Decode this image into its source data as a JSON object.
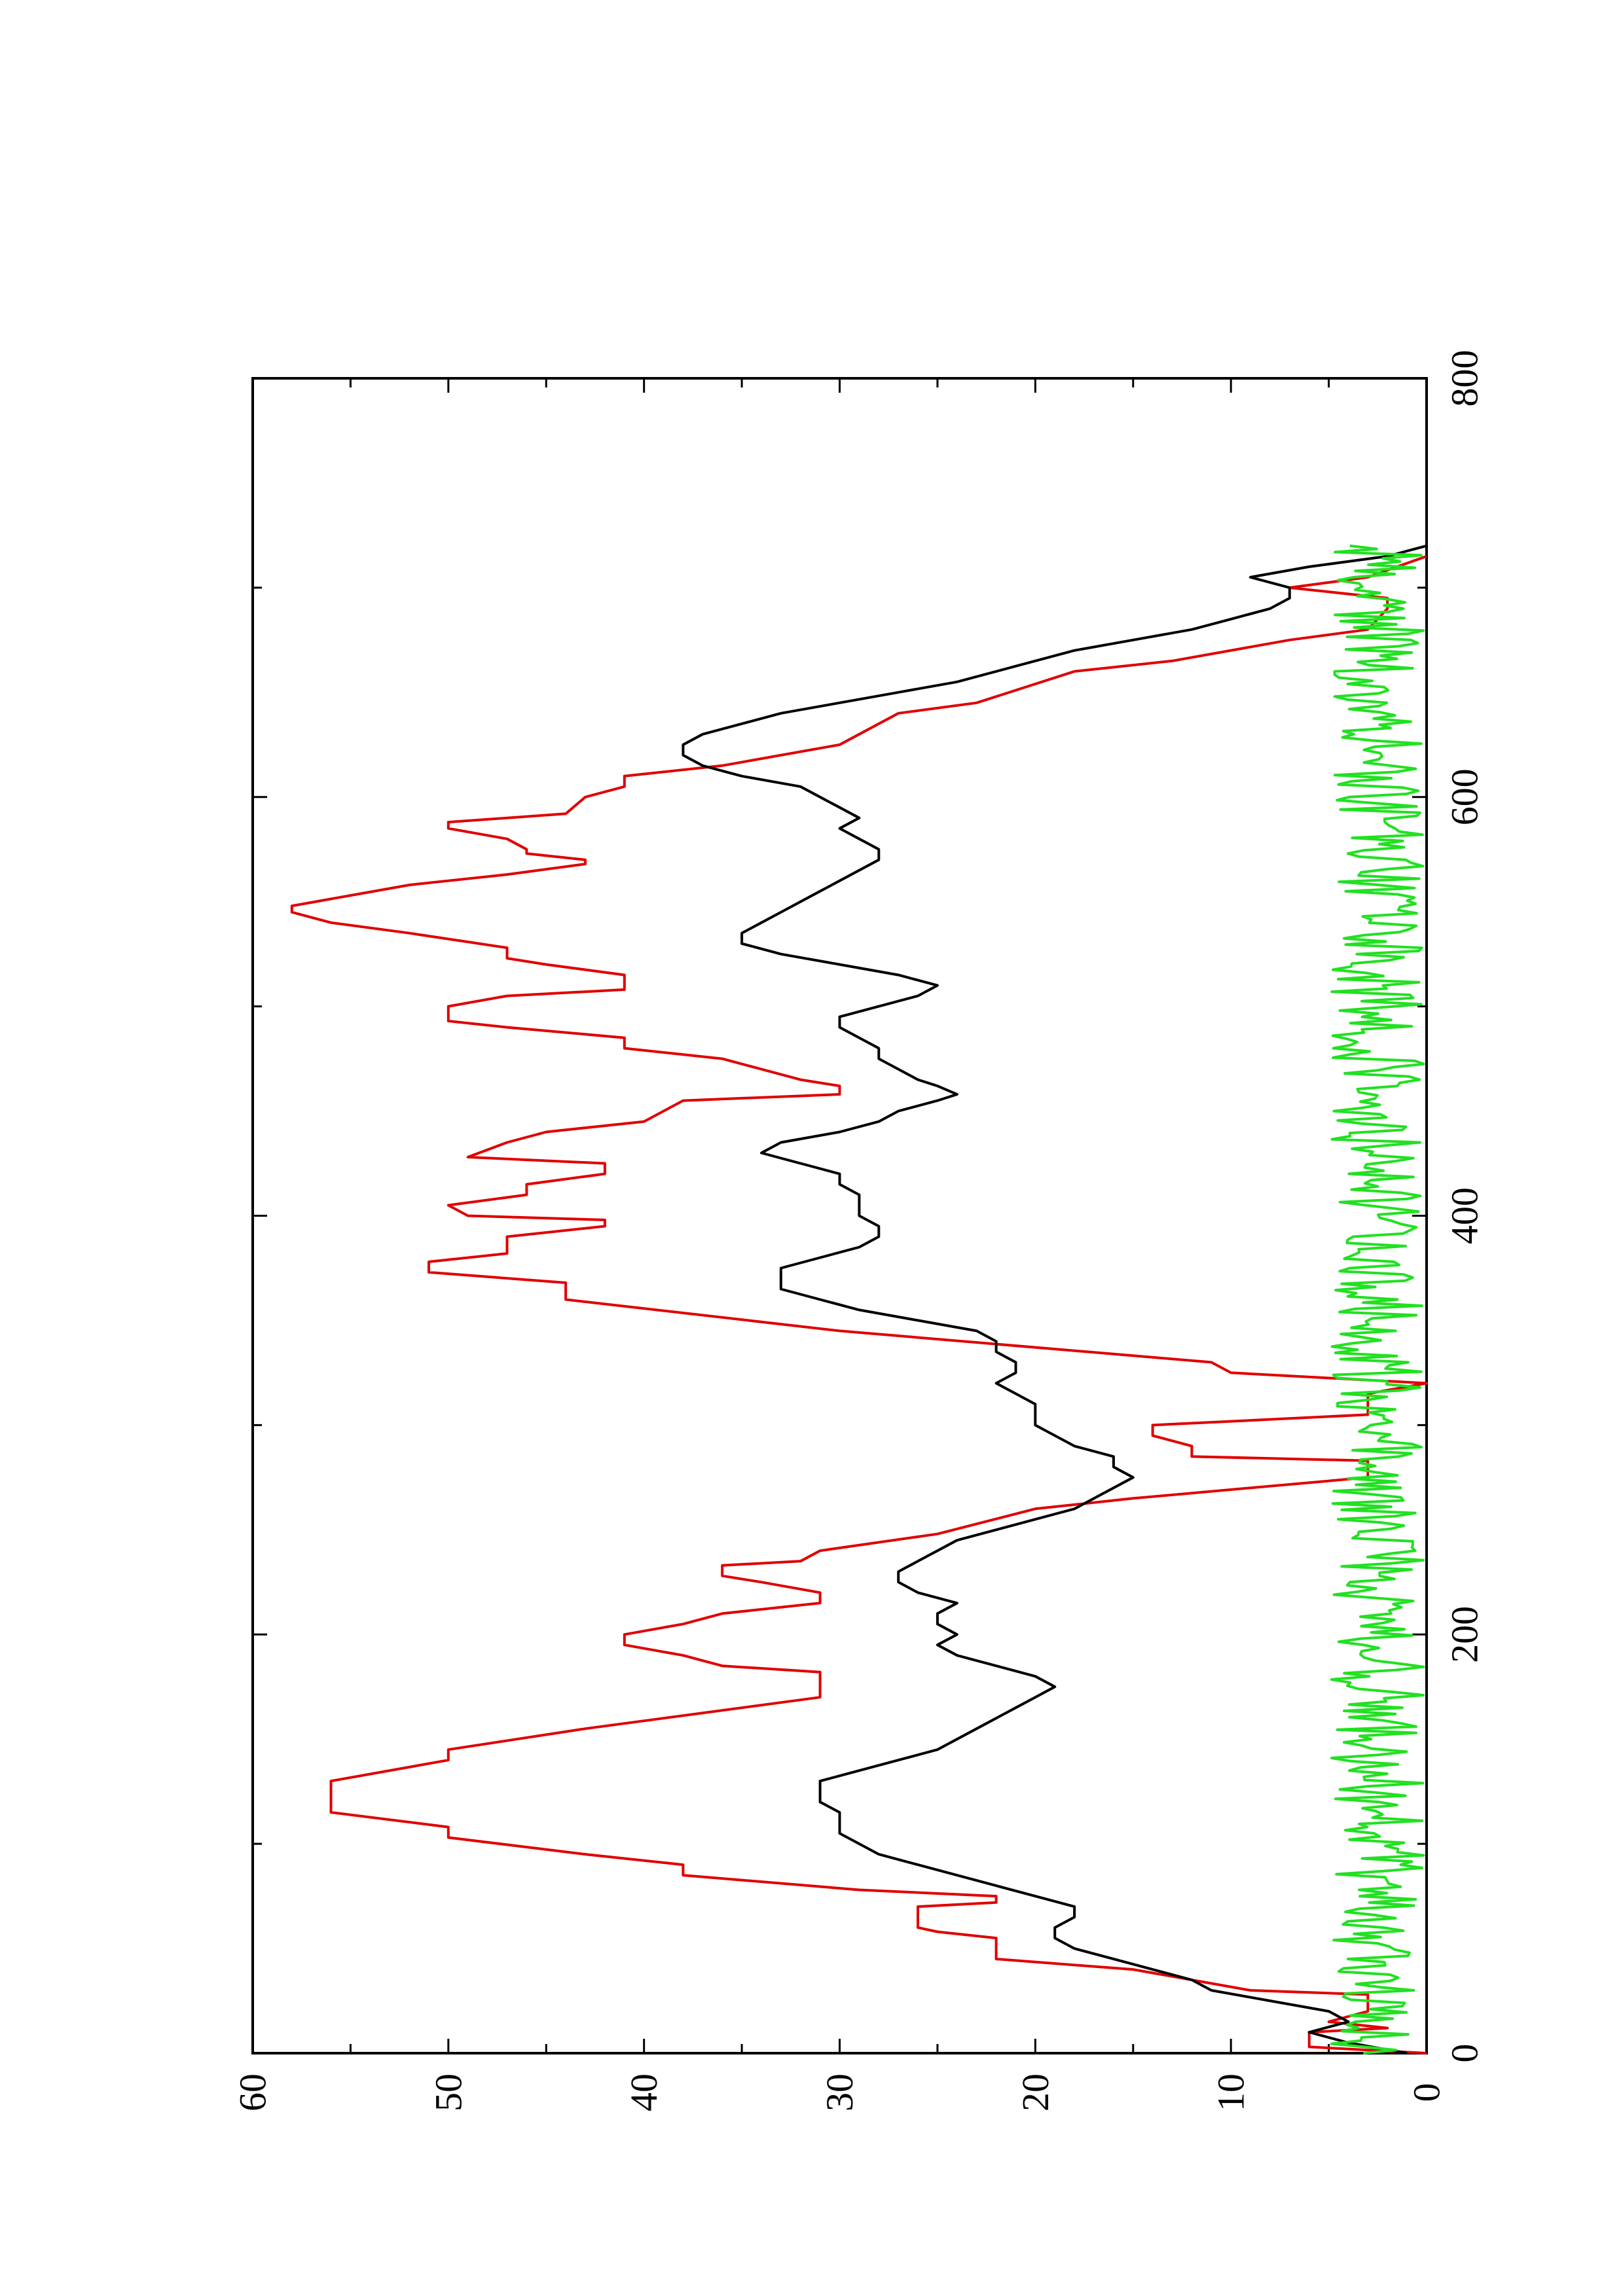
{
  "chart_data": {
    "type": "line",
    "orientation": "rotated-90-ccw",
    "title": "",
    "xlabel": "",
    "ylabel": "",
    "xlim": [
      0,
      800
    ],
    "ylim": [
      0,
      60
    ],
    "x_ticks": [
      0,
      200,
      400,
      600,
      800
    ],
    "y_ticks": [
      0,
      10,
      20,
      30,
      40,
      50,
      60
    ],
    "x_tick_labels": [
      "0",
      "200",
      "400",
      "600",
      "800"
    ],
    "y_tick_labels": [
      "0",
      "10",
      "20",
      "30",
      "40",
      "50",
      "60"
    ],
    "grid": false,
    "legend": "none",
    "series": [
      {
        "color": "#e00000",
        "style": "step",
        "points": [
          [
            0,
            0
          ],
          [
            3,
            6
          ],
          [
            10,
            6
          ],
          [
            12,
            2
          ],
          [
            15,
            5
          ],
          [
            20,
            3
          ],
          [
            28,
            3
          ],
          [
            30,
            9
          ],
          [
            40,
            15
          ],
          [
            45,
            22
          ],
          [
            55,
            22
          ],
          [
            58,
            25
          ],
          [
            60,
            26
          ],
          [
            70,
            26
          ],
          [
            72,
            22
          ],
          [
            75,
            22
          ],
          [
            78,
            29
          ],
          [
            85,
            38
          ],
          [
            90,
            38
          ],
          [
            95,
            43
          ],
          [
            103,
            50
          ],
          [
            108,
            50
          ],
          [
            115,
            56
          ],
          [
            130,
            56
          ],
          [
            140,
            50
          ],
          [
            145,
            50
          ],
          [
            155,
            43
          ],
          [
            170,
            31
          ],
          [
            182,
            31
          ],
          [
            185,
            36
          ],
          [
            190,
            38
          ],
          [
            195,
            41
          ],
          [
            200,
            41
          ],
          [
            205,
            38
          ],
          [
            210,
            36
          ],
          [
            215,
            31
          ],
          [
            220,
            31
          ],
          [
            225,
            34
          ],
          [
            228,
            36
          ],
          [
            233,
            36
          ],
          [
            235,
            32
          ],
          [
            240,
            31
          ],
          [
            248,
            25
          ],
          [
            260,
            20
          ],
          [
            265,
            15
          ],
          [
            275,
            3
          ],
          [
            283,
            3
          ],
          [
            285,
            12
          ],
          [
            290,
            12
          ],
          [
            295,
            14
          ],
          [
            300,
            14
          ],
          [
            305,
            3
          ],
          [
            315,
            3
          ],
          [
            320,
            0
          ],
          [
            325,
            10
          ],
          [
            330,
            11
          ],
          [
            345,
            30
          ],
          [
            360,
            44
          ],
          [
            368,
            44
          ],
          [
            373,
            51
          ],
          [
            378,
            51
          ],
          [
            382,
            47
          ],
          [
            390,
            47
          ],
          [
            395,
            42
          ],
          [
            398,
            42
          ],
          [
            400,
            49
          ],
          [
            405,
            50
          ],
          [
            410,
            46
          ],
          [
            415,
            46
          ],
          [
            420,
            42
          ],
          [
            425,
            42
          ],
          [
            428,
            49
          ],
          [
            435,
            47
          ],
          [
            440,
            45
          ],
          [
            445,
            40
          ],
          [
            450,
            39
          ],
          [
            455,
            38
          ],
          [
            458,
            30
          ],
          [
            462,
            30
          ],
          [
            465,
            32
          ],
          [
            470,
            34
          ],
          [
            475,
            36
          ],
          [
            480,
            41
          ],
          [
            485,
            41
          ],
          [
            490,
            47
          ],
          [
            493,
            50
          ],
          [
            500,
            50
          ],
          [
            505,
            47
          ],
          [
            508,
            41
          ],
          [
            515,
            41
          ],
          [
            520,
            45
          ],
          [
            523,
            47
          ],
          [
            528,
            47
          ],
          [
            535,
            52
          ],
          [
            540,
            56
          ],
          [
            545,
            58
          ],
          [
            548,
            58
          ],
          [
            553,
            55
          ],
          [
            558,
            52
          ],
          [
            563,
            47
          ],
          [
            568,
            43
          ],
          [
            570,
            43
          ],
          [
            573,
            46
          ],
          [
            575,
            46
          ],
          [
            580,
            47
          ],
          [
            585,
            50
          ],
          [
            588,
            50
          ],
          [
            592,
            44
          ],
          [
            600,
            43
          ],
          [
            605,
            41
          ],
          [
            610,
            41
          ],
          [
            615,
            36
          ],
          [
            625,
            30
          ],
          [
            640,
            27
          ],
          [
            645,
            23
          ],
          [
            660,
            18
          ],
          [
            665,
            13
          ],
          [
            675,
            7
          ],
          [
            680,
            3
          ],
          [
            690,
            2
          ],
          [
            695,
            2
          ],
          [
            700,
            7
          ],
          [
            705,
            3
          ],
          [
            715,
            0
          ]
        ]
      },
      {
        "color": "#000000",
        "style": "line",
        "points": [
          [
            0,
            1
          ],
          [
            5,
            4
          ],
          [
            10,
            6
          ],
          [
            15,
            4
          ],
          [
            20,
            5
          ],
          [
            25,
            8
          ],
          [
            30,
            11
          ],
          [
            35,
            12
          ],
          [
            40,
            14
          ],
          [
            45,
            16
          ],
          [
            50,
            18
          ],
          [
            55,
            19
          ],
          [
            60,
            19
          ],
          [
            65,
            18
          ],
          [
            70,
            18
          ],
          [
            75,
            20
          ],
          [
            80,
            22
          ],
          [
            85,
            24
          ],
          [
            90,
            26
          ],
          [
            95,
            28
          ],
          [
            100,
            29
          ],
          [
            105,
            30
          ],
          [
            110,
            30
          ],
          [
            115,
            30
          ],
          [
            120,
            31
          ],
          [
            125,
            31
          ],
          [
            130,
            31
          ],
          [
            135,
            29
          ],
          [
            140,
            27
          ],
          [
            145,
            25
          ],
          [
            150,
            24
          ],
          [
            155,
            23
          ],
          [
            160,
            22
          ],
          [
            165,
            21
          ],
          [
            170,
            20
          ],
          [
            175,
            19
          ],
          [
            180,
            20
          ],
          [
            185,
            22
          ],
          [
            190,
            24
          ],
          [
            195,
            25
          ],
          [
            200,
            24
          ],
          [
            205,
            25
          ],
          [
            210,
            25
          ],
          [
            215,
            24
          ],
          [
            220,
            26
          ],
          [
            225,
            27
          ],
          [
            230,
            27
          ],
          [
            235,
            26
          ],
          [
            240,
            25
          ],
          [
            245,
            24
          ],
          [
            250,
            22
          ],
          [
            255,
            20
          ],
          [
            260,
            18
          ],
          [
            265,
            17
          ],
          [
            270,
            16
          ],
          [
            275,
            15
          ],
          [
            280,
            16
          ],
          [
            285,
            16
          ],
          [
            290,
            18
          ],
          [
            295,
            19
          ],
          [
            300,
            20
          ],
          [
            305,
            20
          ],
          [
            310,
            20
          ],
          [
            315,
            21
          ],
          [
            320,
            22
          ],
          [
            325,
            21
          ],
          [
            330,
            21
          ],
          [
            335,
            22
          ],
          [
            340,
            22
          ],
          [
            345,
            23
          ],
          [
            350,
            26
          ],
          [
            355,
            29
          ],
          [
            360,
            31
          ],
          [
            365,
            33
          ],
          [
            370,
            33
          ],
          [
            375,
            33
          ],
          [
            380,
            31
          ],
          [
            385,
            29
          ],
          [
            390,
            28
          ],
          [
            395,
            28
          ],
          [
            400,
            29
          ],
          [
            405,
            29
          ],
          [
            410,
            29
          ],
          [
            415,
            30
          ],
          [
            420,
            30
          ],
          [
            425,
            32
          ],
          [
            430,
            34
          ],
          [
            435,
            33
          ],
          [
            440,
            30
          ],
          [
            445,
            28
          ],
          [
            450,
            27
          ],
          [
            455,
            25
          ],
          [
            458,
            24
          ],
          [
            462,
            25
          ],
          [
            465,
            26
          ],
          [
            470,
            27
          ],
          [
            475,
            28
          ],
          [
            480,
            28
          ],
          [
            485,
            29
          ],
          [
            490,
            30
          ],
          [
            495,
            30
          ],
          [
            500,
            28
          ],
          [
            505,
            26
          ],
          [
            510,
            25
          ],
          [
            515,
            27
          ],
          [
            520,
            30
          ],
          [
            525,
            33
          ],
          [
            530,
            35
          ],
          [
            535,
            35
          ],
          [
            540,
            34
          ],
          [
            545,
            33
          ],
          [
            550,
            32
          ],
          [
            555,
            31
          ],
          [
            560,
            30
          ],
          [
            565,
            29
          ],
          [
            570,
            28
          ],
          [
            575,
            28
          ],
          [
            580,
            29
          ],
          [
            585,
            30
          ],
          [
            590,
            29
          ],
          [
            595,
            30
          ],
          [
            600,
            31
          ],
          [
            605,
            32
          ],
          [
            610,
            35
          ],
          [
            615,
            37
          ],
          [
            620,
            38
          ],
          [
            625,
            38
          ],
          [
            630,
            37
          ],
          [
            635,
            35
          ],
          [
            640,
            33
          ],
          [
            645,
            30
          ],
          [
            650,
            27
          ],
          [
            655,
            24
          ],
          [
            660,
            22
          ],
          [
            665,
            20
          ],
          [
            670,
            18
          ],
          [
            675,
            15
          ],
          [
            680,
            12
          ],
          [
            685,
            10
          ],
          [
            690,
            8
          ],
          [
            695,
            7
          ],
          [
            700,
            7
          ],
          [
            705,
            9
          ],
          [
            710,
            6
          ],
          [
            715,
            2
          ],
          [
            720,
            0
          ]
        ]
      },
      {
        "color": "#22e022",
        "style": "noise",
        "x_range": [
          0,
          720
        ],
        "level_range": [
          0,
          5
        ],
        "mean_level": 2.5
      }
    ]
  }
}
